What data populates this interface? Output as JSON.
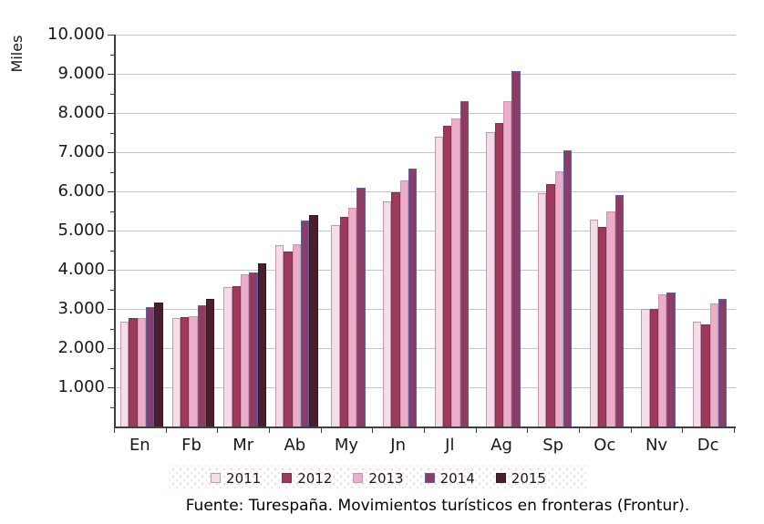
{
  "chart_data": {
    "type": "bar",
    "title": "",
    "xlabel": "",
    "ylabel": "Miles",
    "ylim": [
      0,
      10000
    ],
    "ytick_step": 1000,
    "ytick_labels": [
      "1.000",
      "2.000",
      "3.000",
      "4.000",
      "5.000",
      "6.000",
      "7.000",
      "8.000",
      "9.000",
      "10.000"
    ],
    "grid": "horizontal",
    "legend_position": "bottom",
    "categories": [
      "En",
      "Fb",
      "Mr",
      "Ab",
      "My",
      "Jn",
      "Jl",
      "Ag",
      "Sp",
      "Oc",
      "Nv",
      "Dc"
    ],
    "series": [
      {
        "name": "2011",
        "fill": "#f3dde8",
        "border": "#c793ad",
        "values": [
          2664,
          2768,
          3555,
          4627,
          5136,
          5746,
          7395,
          7520,
          5943,
          5270,
          3004,
          2667
        ]
      },
      {
        "name": "2012",
        "fill": "#9d3a5b",
        "border": "#82304c",
        "values": [
          2777,
          2788,
          3584,
          4477,
          5359,
          5966,
          7664,
          7737,
          6190,
          5100,
          2990,
          2615
        ]
      },
      {
        "name": "2013",
        "fill": "#eaaecb",
        "border": "#d194b5",
        "values": [
          2765,
          2820,
          3888,
          4660,
          5574,
          6289,
          7870,
          8301,
          6520,
          5480,
          3374,
          3134
        ]
      },
      {
        "name": "2014",
        "fill": "#8d3c63",
        "border": "#5b61a3",
        "values": [
          3054,
          3102,
          3925,
          5267,
          6086,
          6580,
          8301,
          9065,
          7041,
          5896,
          3426,
          3266
        ]
      },
      {
        "name": "2015",
        "fill": "#4a1e2b",
        "border": "#361621",
        "values": [
          3167,
          3249,
          4152,
          5397,
          null,
          null,
          null,
          null,
          null,
          null,
          null,
          null
        ]
      }
    ]
  },
  "source_note": "Fuente: Turespaña. Movimientos turísticos en fronteras (Frontur)."
}
